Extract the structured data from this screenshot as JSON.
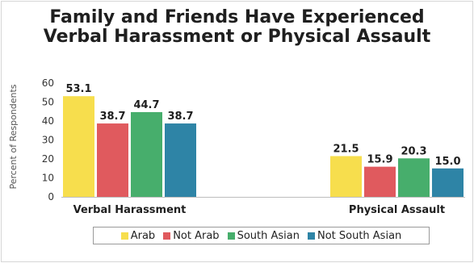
{
  "chart_data": {
    "type": "bar",
    "title_lines": [
      "Family and Friends Have Experienced",
      "Verbal Harassment or Physical Assault"
    ],
    "ylabel": "Percent of Respondents",
    "xlabel": "",
    "ylim": [
      0,
      60
    ],
    "yticks": [
      0,
      10,
      20,
      30,
      40,
      50,
      60
    ],
    "grid": false,
    "legend_position": "bottom",
    "categories": [
      "Verbal Harassment",
      "Physical Assault"
    ],
    "series": [
      {
        "name": "Arab",
        "color": "#f7de4d",
        "values": [
          53.1,
          21.5
        ],
        "labels": [
          "53.1",
          "21.5"
        ]
      },
      {
        "name": "Not Arab",
        "color": "#e05a5e",
        "values": [
          38.7,
          15.9
        ],
        "labels": [
          "38.7",
          "15.9"
        ]
      },
      {
        "name": "South Asian",
        "color": "#47ae6c",
        "values": [
          44.7,
          20.3
        ],
        "labels": [
          "44.7",
          "20.3"
        ]
      },
      {
        "name": "Not South Asian",
        "color": "#2e84a6",
        "values": [
          38.7,
          15.0
        ],
        "labels": [
          "38.7",
          "15.0"
        ]
      }
    ]
  }
}
